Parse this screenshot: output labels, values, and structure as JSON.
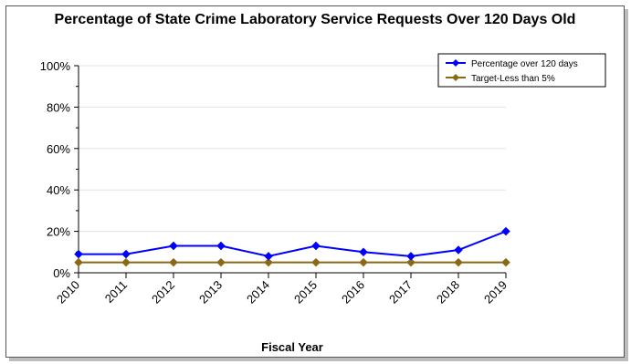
{
  "chart_data": {
    "type": "line",
    "title": "Percentage of State Crime Laboratory Service Requests Over 120 Days Old",
    "xlabel": "Fiscal Year",
    "ylabel": "",
    "categories": [
      "2010",
      "2011",
      "2012",
      "2013",
      "2014",
      "2015",
      "2016",
      "2017",
      "2018",
      "2019"
    ],
    "ylim": [
      0,
      100
    ],
    "yticks": [
      "0%",
      "20%",
      "40%",
      "60%",
      "80%",
      "100%"
    ],
    "grid": true,
    "legend_position": "top-right",
    "series": [
      {
        "name": "Percentage over 120 days",
        "color": "#0000ff",
        "values": [
          9,
          9,
          13,
          13,
          8,
          13,
          10,
          8,
          11,
          20
        ]
      },
      {
        "name": "Target-Less than 5%",
        "color": "#8b6914",
        "values": [
          5,
          5,
          5,
          5,
          5,
          5,
          5,
          5,
          5,
          5
        ]
      }
    ]
  }
}
